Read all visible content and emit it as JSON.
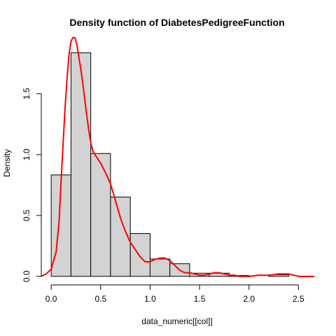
{
  "chart_data": {
    "type": "histogram",
    "title": "Density function of DiabetesPedigreeFunction",
    "xlabel": "data_numeric[[col]]",
    "ylabel": "Density",
    "xlim": [
      -0.1,
      2.66
    ],
    "ylim": [
      -0.07,
      1.93
    ],
    "x_ticks": [
      {
        "value": 0.0,
        "label": "0.0"
      },
      {
        "value": 0.5,
        "label": "0.5"
      },
      {
        "value": 1.0,
        "label": "1.0"
      },
      {
        "value": 1.5,
        "label": "1.5"
      },
      {
        "value": 2.0,
        "label": "2.0"
      },
      {
        "value": 2.5,
        "label": "2.5"
      }
    ],
    "y_ticks": [
      {
        "value": 0.0,
        "label": "0.0"
      },
      {
        "value": 0.5,
        "label": "0.5"
      },
      {
        "value": 1.0,
        "label": "1.0"
      },
      {
        "value": 1.5,
        "label": "1.5"
      }
    ],
    "bins": [
      {
        "start": 0.0,
        "end": 0.2,
        "density": 0.833
      },
      {
        "start": 0.2,
        "end": 0.4,
        "density": 1.836
      },
      {
        "start": 0.4,
        "end": 0.6,
        "density": 1.009
      },
      {
        "start": 0.6,
        "end": 0.8,
        "density": 0.651
      },
      {
        "start": 0.8,
        "end": 1.0,
        "density": 0.352
      },
      {
        "start": 1.0,
        "end": 1.2,
        "density": 0.143
      },
      {
        "start": 1.2,
        "end": 1.4,
        "density": 0.104
      },
      {
        "start": 1.4,
        "end": 1.6,
        "density": 0.026
      },
      {
        "start": 1.6,
        "end": 1.8,
        "density": 0.026
      },
      {
        "start": 1.8,
        "end": 2.0,
        "density": 0.007
      },
      {
        "start": 2.0,
        "end": 2.2,
        "density": 0.0
      },
      {
        "start": 2.2,
        "end": 2.4,
        "density": 0.013
      },
      {
        "start": 2.4,
        "end": 2.6,
        "density": 0.0
      }
    ],
    "density_curve": {
      "x": [
        -0.1,
        -0.05,
        0.0,
        0.05,
        0.08,
        0.1,
        0.12,
        0.14,
        0.16,
        0.18,
        0.2,
        0.22,
        0.24,
        0.26,
        0.28,
        0.3,
        0.32,
        0.34,
        0.36,
        0.38,
        0.4,
        0.42,
        0.45,
        0.5,
        0.55,
        0.6,
        0.65,
        0.7,
        0.75,
        0.8,
        0.85,
        0.9,
        0.95,
        1.0,
        1.05,
        1.1,
        1.15,
        1.2,
        1.25,
        1.3,
        1.35,
        1.4,
        1.45,
        1.5,
        1.55,
        1.6,
        1.65,
        1.7,
        1.75,
        1.8,
        1.85,
        1.9,
        1.95,
        2.0,
        2.1,
        2.2,
        2.3,
        2.35,
        2.4,
        2.45,
        2.5,
        2.55,
        2.6,
        2.66
      ],
      "y": [
        0.0,
        0.02,
        0.06,
        0.2,
        0.45,
        0.78,
        1.08,
        1.38,
        1.62,
        1.82,
        1.93,
        1.96,
        1.96,
        1.9,
        1.8,
        1.7,
        1.58,
        1.45,
        1.32,
        1.2,
        1.1,
        1.03,
        0.99,
        0.93,
        0.85,
        0.76,
        0.62,
        0.48,
        0.37,
        0.28,
        0.22,
        0.16,
        0.12,
        0.12,
        0.14,
        0.15,
        0.15,
        0.13,
        0.09,
        0.05,
        0.03,
        0.03,
        0.02,
        0.01,
        0.01,
        0.02,
        0.03,
        0.03,
        0.02,
        0.01,
        0.01,
        0.0,
        0.0,
        0.0,
        0.01,
        0.01,
        0.02,
        0.02,
        0.02,
        0.01,
        0.0,
        0.0,
        0.0,
        0.0
      ]
    },
    "colors": {
      "bar_fill": "#d3d3d3",
      "bar_stroke": "#000000",
      "curve": "#ff0000",
      "axis": "#000000"
    },
    "grid": false,
    "legend": "none"
  }
}
